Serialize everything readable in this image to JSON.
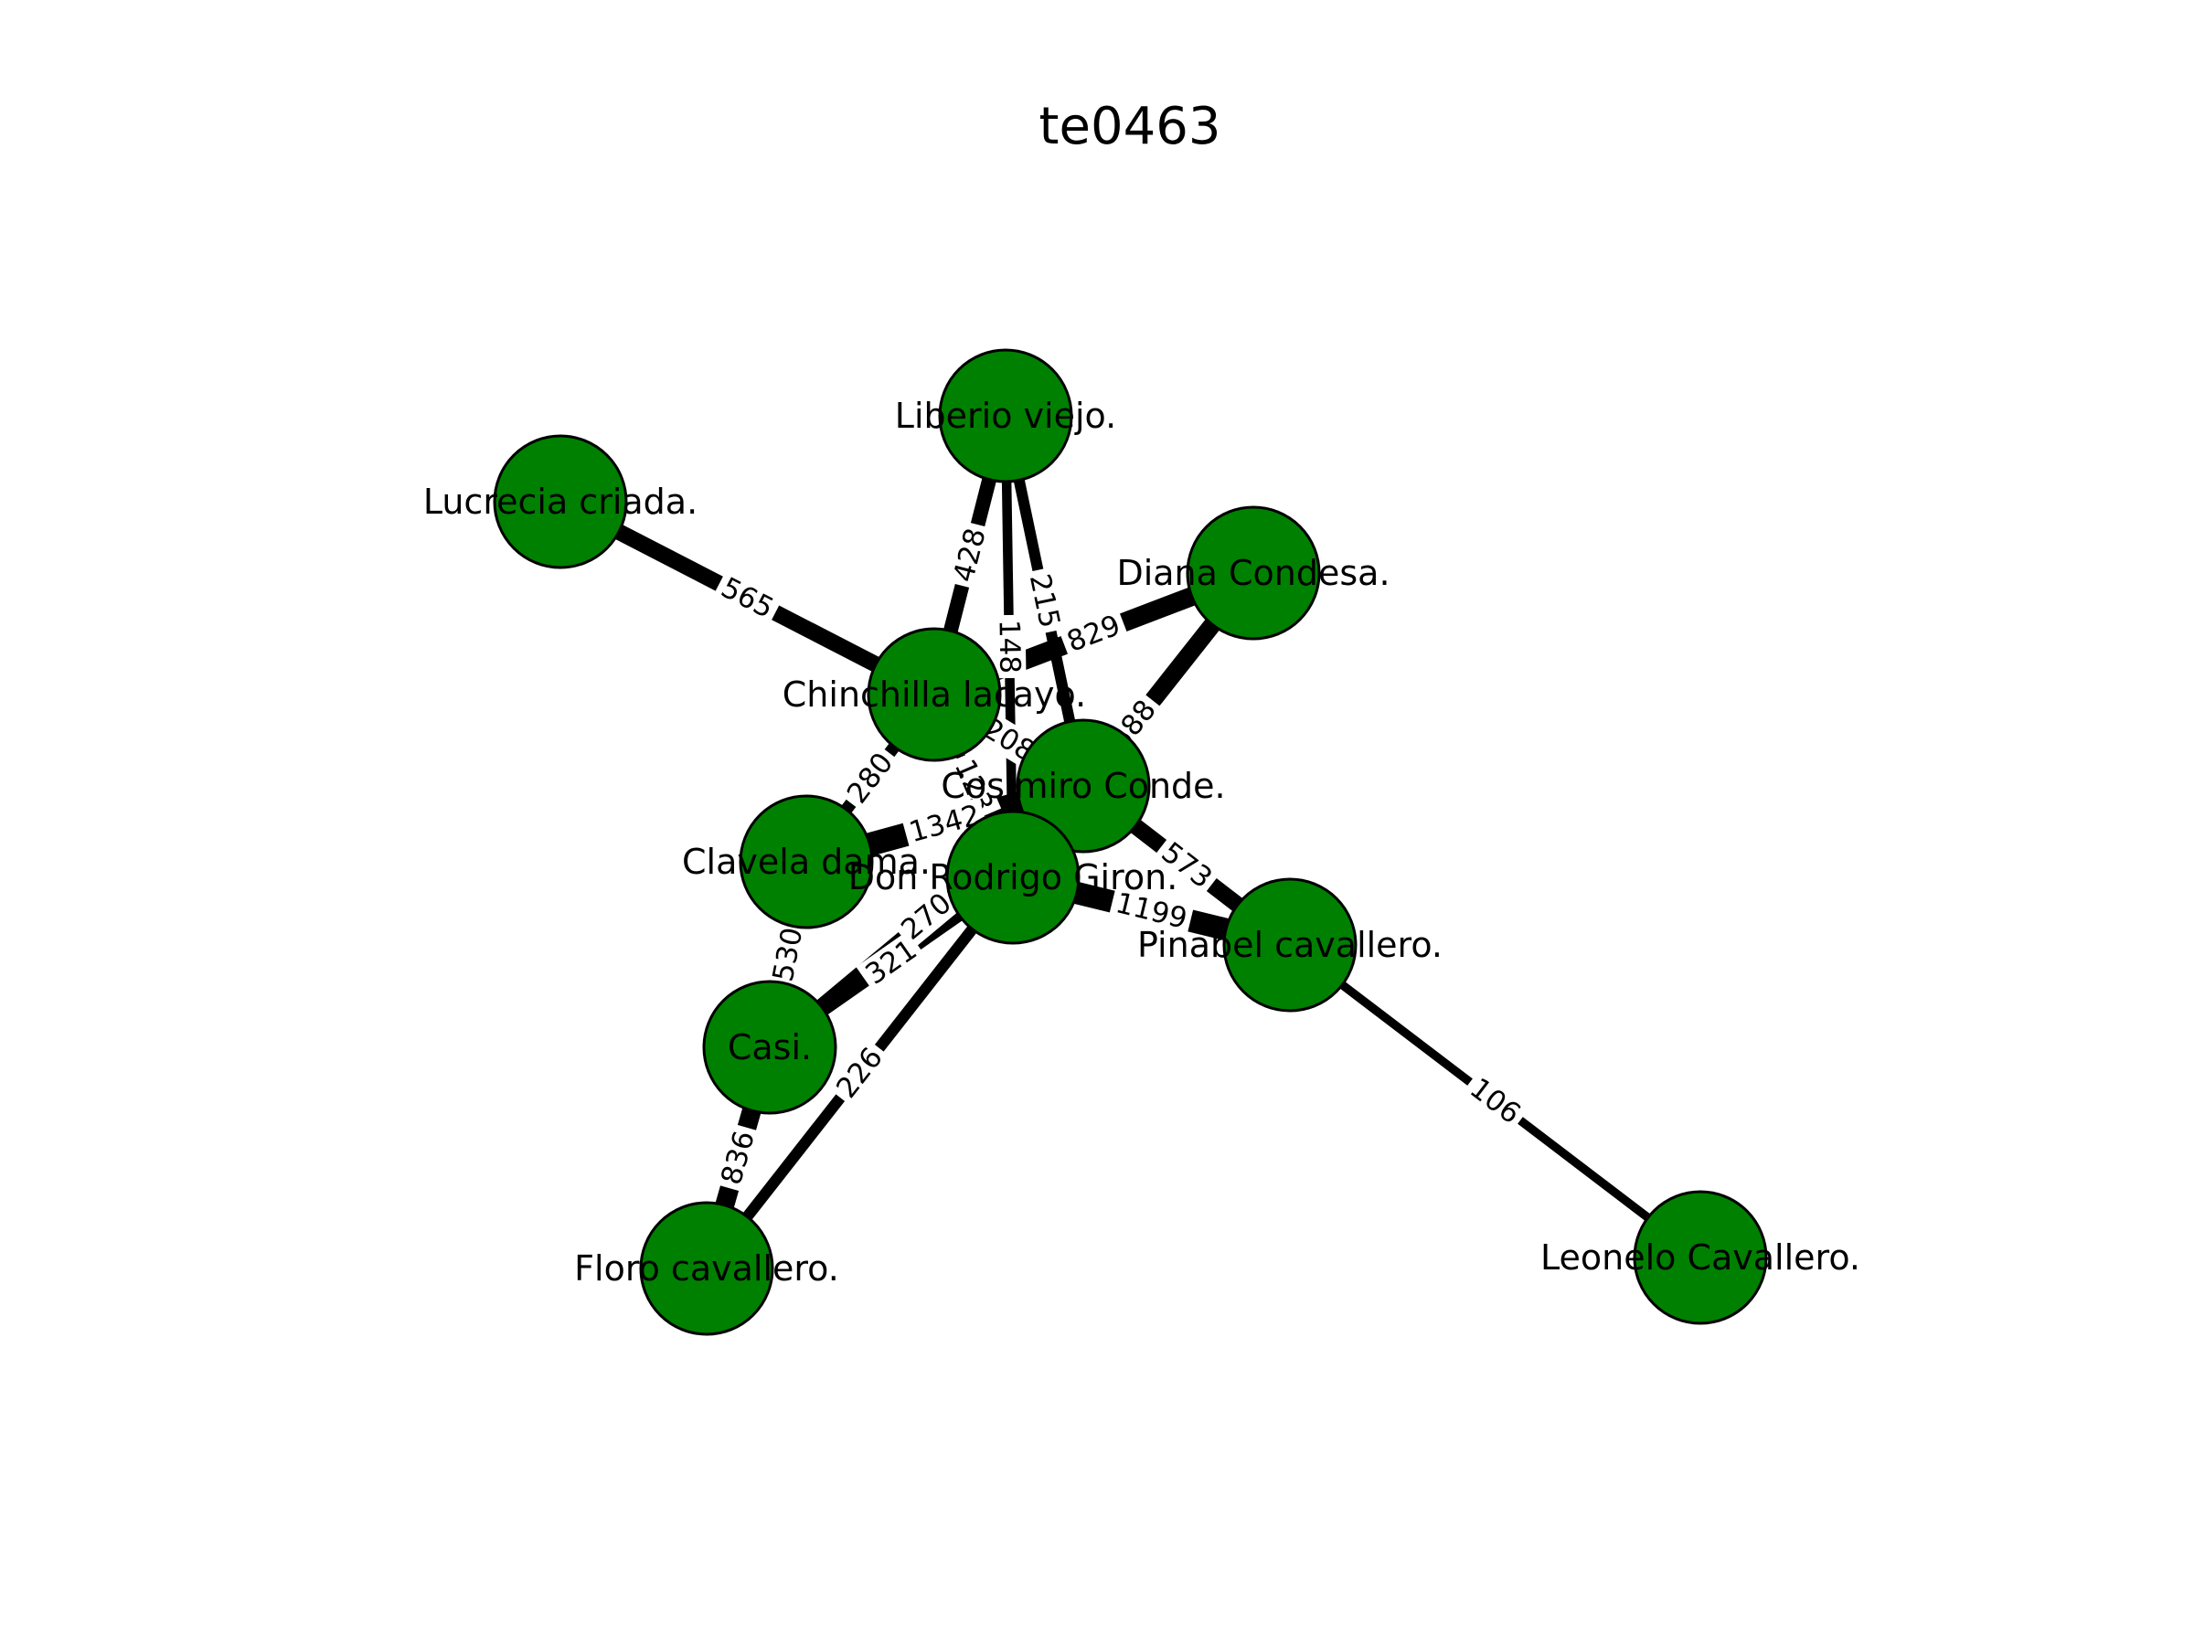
{
  "diagram": {
    "title": "te0463",
    "colors": {
      "node_fill": "#008000",
      "node_stroke": "#000000",
      "edge": "#000000",
      "background": "#ffffff"
    },
    "nodes": [
      {
        "id": "liberio",
        "label": "Liberio viejo."
      },
      {
        "id": "lucrecia",
        "label": "Lucrecia criada."
      },
      {
        "id": "diana",
        "label": "Diana Condesa."
      },
      {
        "id": "chinchilla",
        "label": "Chinchilla lacayo."
      },
      {
        "id": "cosimiro",
        "label": "Cosimiro Conde."
      },
      {
        "id": "clavela",
        "label": "Clavela dama."
      },
      {
        "id": "rodrigo",
        "label": "Don Rodrigo Giron."
      },
      {
        "id": "pinabel",
        "label": "Pinabel cavallero."
      },
      {
        "id": "casi",
        "label": "Casi."
      },
      {
        "id": "floro",
        "label": "Floro cavallero."
      },
      {
        "id": "leonelo",
        "label": "Leonelo Cavallero."
      }
    ],
    "edges": [
      {
        "source": "lucrecia",
        "target": "chinchilla",
        "weight": "565"
      },
      {
        "source": "liberio",
        "target": "chinchilla",
        "weight": "428"
      },
      {
        "source": "liberio",
        "target": "rodrigo",
        "weight": "148"
      },
      {
        "source": "liberio",
        "target": "cosimiro",
        "weight": "215"
      },
      {
        "source": "diana",
        "target": "chinchilla",
        "weight": "829"
      },
      {
        "source": "diana",
        "target": "rodrigo",
        "weight": "688"
      },
      {
        "source": "chinchilla",
        "target": "clavela",
        "weight": "280"
      },
      {
        "source": "chinchilla",
        "target": "rodrigo",
        "weight": "123"
      },
      {
        "source": "chinchilla",
        "target": "cosimiro",
        "weight": "208"
      },
      {
        "source": "cosimiro",
        "target": "clavela",
        "weight": "1342"
      },
      {
        "source": "cosimiro",
        "target": "pinabel",
        "weight": "573"
      },
      {
        "source": "rodrigo",
        "target": "pinabel",
        "weight": "1199"
      },
      {
        "source": "rodrigo",
        "target": "casi",
        "weight": "321"
      },
      {
        "source": "cosimiro",
        "target": "casi",
        "weight": "270"
      },
      {
        "source": "clavela",
        "target": "casi",
        "weight": "530"
      },
      {
        "source": "casi",
        "target": "floro",
        "weight": "836"
      },
      {
        "source": "rodrigo",
        "target": "floro",
        "weight": "226"
      },
      {
        "source": "pinabel",
        "target": "leonelo",
        "weight": "106"
      }
    ]
  }
}
